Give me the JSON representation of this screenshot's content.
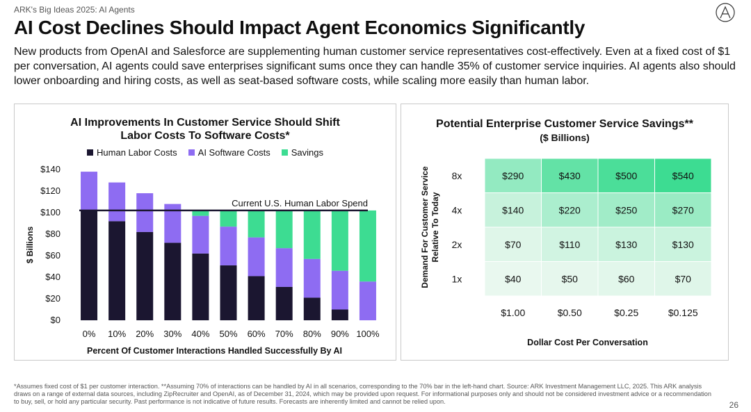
{
  "header": {
    "eyebrow": "ARK's Big Ideas 2025: AI Agents",
    "title": "AI Cost Declines Should Impact Agent Economics Significantly",
    "subtitle": "New products from OpenAI and Salesforce are supplementing human customer service representatives cost-effectively. Even at a fixed cost of $1 per conversation, AI agents could save enterprises significant sums once they can handle 35% of customer service inquiries. AI agents also should lower onboarding and hiring costs, as well as seat-based software costs, while scaling more easily than human labor."
  },
  "chart_data": [
    {
      "type": "bar",
      "stacked": true,
      "title_line1": "AI Improvements In Customer Service Should Shift",
      "title_line2": "Labor Costs To Software Costs*",
      "xlabel": "Percent Of Customer Interactions Handled Successfully By AI",
      "ylabel": "$ Billions",
      "categories": [
        "0%",
        "10%",
        "20%",
        "30%",
        "40%",
        "50%",
        "60%",
        "70%",
        "80%",
        "90%",
        "100%"
      ],
      "ylim": [
        0,
        140
      ],
      "yticks": [
        0,
        20,
        40,
        60,
        80,
        100,
        120,
        140
      ],
      "ytick_labels": [
        "$0",
        "$20",
        "$40",
        "$60",
        "$80",
        "$100",
        "$120",
        "$140"
      ],
      "series": [
        {
          "name": "Human Labor Costs",
          "color": "#1b1630",
          "values": [
            102,
            92,
            82,
            72,
            62,
            51,
            41,
            31,
            21,
            10,
            0
          ]
        },
        {
          "name": "AI Software Costs",
          "color": "#8e6cf2",
          "values": [
            36,
            36,
            36,
            36,
            35,
            36,
            36,
            36,
            36,
            36,
            36
          ]
        },
        {
          "name": "Savings",
          "color": "#3ddc92",
          "values": [
            0,
            0,
            0,
            0,
            5,
            15,
            25,
            35,
            45,
            56,
            66
          ]
        }
      ],
      "reference_line": {
        "value": 102,
        "label": "Current U.S. Human Labor Spend"
      },
      "grid": false,
      "legend": "top"
    },
    {
      "type": "heatmap",
      "title": "Potential Enterprise Customer Service Savings**",
      "subtitle": "($ Billions)",
      "xlabel": "Dollar Cost Per Conversation",
      "ylabel_line1": "Demand For Customer Service",
      "ylabel_line2": "Relative To Today",
      "x_categories": [
        "$1.00",
        "$0.50",
        "$0.25",
        "$0.125"
      ],
      "y_categories": [
        "8x",
        "4x",
        "2x",
        "1x"
      ],
      "values": [
        [
          290,
          430,
          500,
          540
        ],
        [
          140,
          220,
          250,
          270
        ],
        [
          70,
          110,
          130,
          130
        ],
        [
          40,
          50,
          60,
          70
        ]
      ],
      "cell_labels": [
        [
          "$290",
          "$430",
          "$500",
          "$540"
        ],
        [
          "$140",
          "$220",
          "$250",
          "$270"
        ],
        [
          "$70",
          "$110",
          "$130",
          "$130"
        ],
        [
          "$40",
          "$50",
          "$60",
          "$70"
        ]
      ],
      "color_low": "#e9f8ef",
      "color_high": "#3ddc92"
    }
  ],
  "footnote": "*Assumes fixed cost of $1 per customer interaction. **Assuming 70% of interactions can be handled by AI in all scenarios, corresponding to the 70% bar in the left-hand chart. Source: ARK Investment Management LLC, 2025. This ARK analysis draws on a range of external data sources, including ZipRecruiter and OpenAI, as of December 31, 2024, which may be provided upon request. For informational purposes only and should not be considered investment advice or a recommendation to buy, sell, or hold any particular security. Past performance is not indicative of future results. Forecasts are inherently limited and cannot be relied upon.",
  "page_number": "26"
}
